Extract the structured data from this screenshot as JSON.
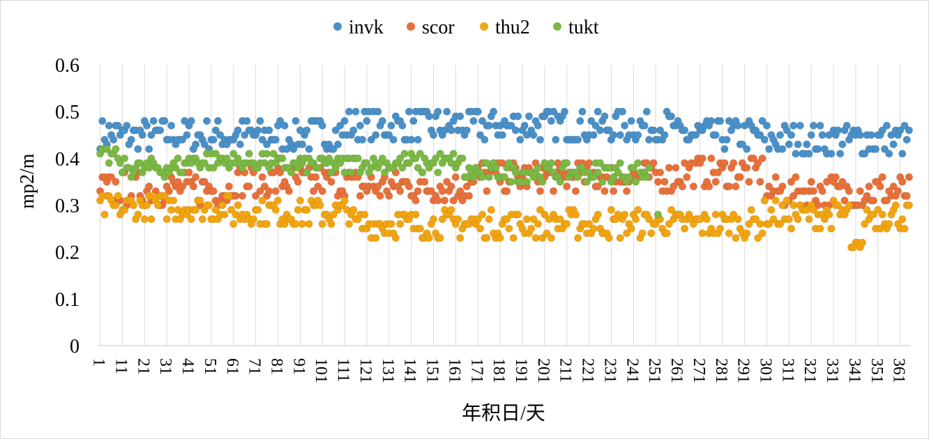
{
  "chart_data": {
    "type": "scatter",
    "title": "",
    "xlabel": "年积日/天",
    "ylabel": "mp2/m",
    "xlim": [
      1,
      365
    ],
    "ylim": [
      0,
      0.6
    ],
    "y_ticks": [
      "0",
      "0.1",
      "0.2",
      "0.3",
      "0.4",
      "0.5",
      "0.6"
    ],
    "x_ticks": [
      "1",
      "11",
      "21",
      "31",
      "41",
      "51",
      "61",
      "71",
      "81",
      "91",
      "101",
      "111",
      "121",
      "131",
      "141",
      "151",
      "161",
      "171",
      "181",
      "191",
      "201",
      "211",
      "221",
      "231",
      "241",
      "251",
      "261",
      "271",
      "281",
      "291",
      "301",
      "311",
      "321",
      "331",
      "341",
      "351",
      "361"
    ],
    "grid": "vertical",
    "legend_position": "top",
    "series": [
      {
        "name": "invk",
        "color": "#4a90c8"
      },
      {
        "name": "scor",
        "color": "#e8703a"
      },
      {
        "name": "thu2",
        "color": "#f2a510"
      },
      {
        "name": "tukt",
        "color": "#7bb944"
      }
    ]
  }
}
